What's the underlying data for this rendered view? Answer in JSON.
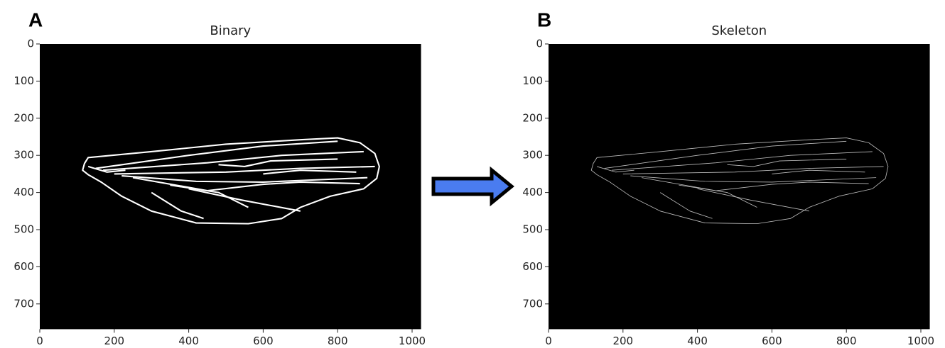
{
  "chart_data": [
    {
      "type": "image",
      "panel_label": "A",
      "title": "Binary",
      "xlim": [
        0,
        1024
      ],
      "ylim": [
        768,
        0
      ],
      "xticks": [
        0,
        200,
        400,
        600,
        800,
        1000
      ],
      "yticks": [
        0,
        100,
        200,
        300,
        400,
        500,
        600,
        700
      ]
    },
    {
      "type": "image",
      "panel_label": "B",
      "title": "Skeleton",
      "xlim": [
        0,
        1024
      ],
      "ylim": [
        768,
        0
      ],
      "xticks": [
        0,
        200,
        400,
        600,
        800,
        1000
      ],
      "yticks": [
        0,
        100,
        200,
        300,
        400,
        500,
        600,
        700
      ]
    }
  ]
}
